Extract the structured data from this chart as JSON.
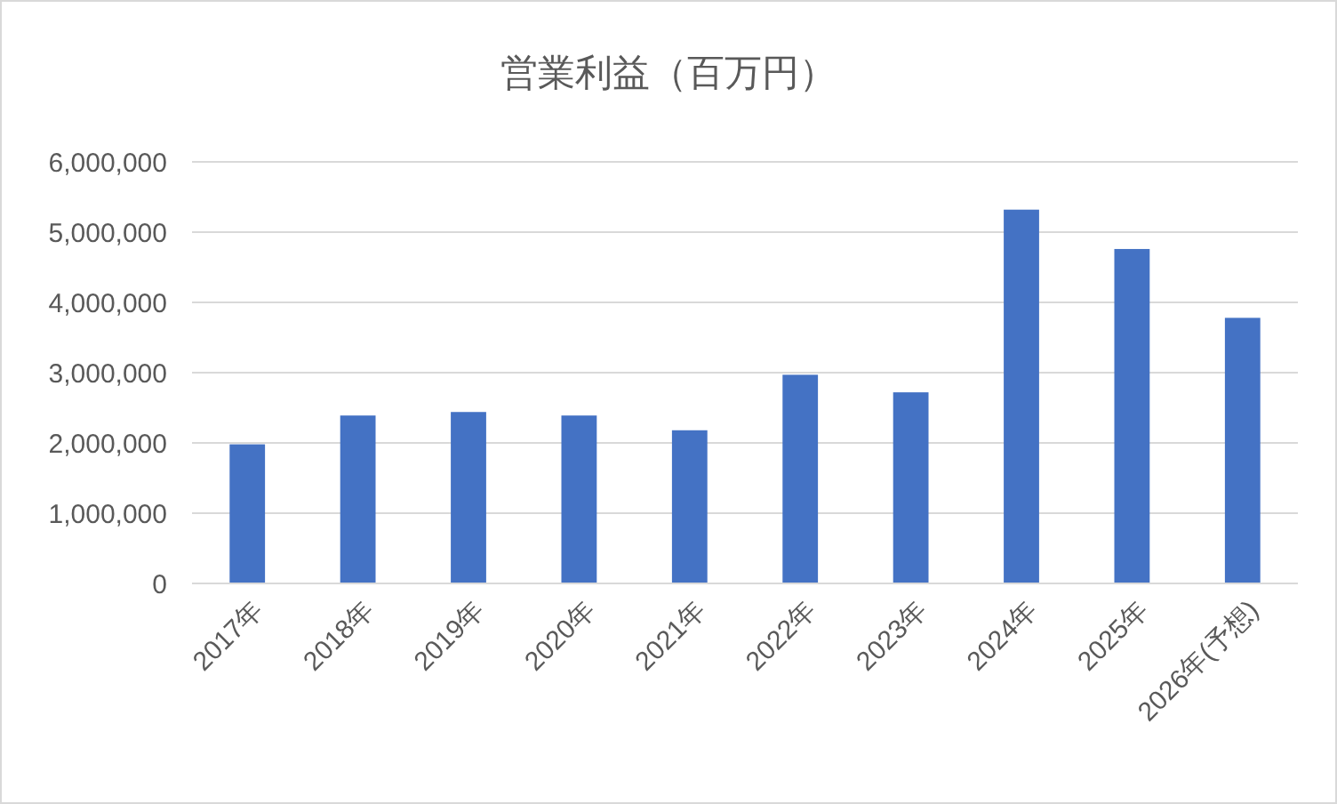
{
  "chart_data": {
    "type": "bar",
    "title": "営業利益（百万円）",
    "categories": [
      "2017年",
      "2018年",
      "2019年",
      "2020年",
      "2021年",
      "2022年",
      "2023年",
      "2024年",
      "2025年",
      "2026年(予想)"
    ],
    "values": [
      1980000,
      2390000,
      2440000,
      2390000,
      2180000,
      2970000,
      2720000,
      5320000,
      4760000,
      3780000
    ],
    "color": "#4472c4",
    "ylim": [
      0,
      6000000
    ],
    "yticks": [
      {
        "value": 0,
        "label": "0"
      },
      {
        "value": 1000000,
        "label": "1,000,000"
      },
      {
        "value": 2000000,
        "label": "2,000,000"
      },
      {
        "value": 3000000,
        "label": "3,000,000"
      },
      {
        "value": 4000000,
        "label": "4,000,000"
      },
      {
        "value": 5000000,
        "label": "5,000,000"
      },
      {
        "value": 6000000,
        "label": "6,000,000"
      }
    ],
    "grid": "y"
  }
}
